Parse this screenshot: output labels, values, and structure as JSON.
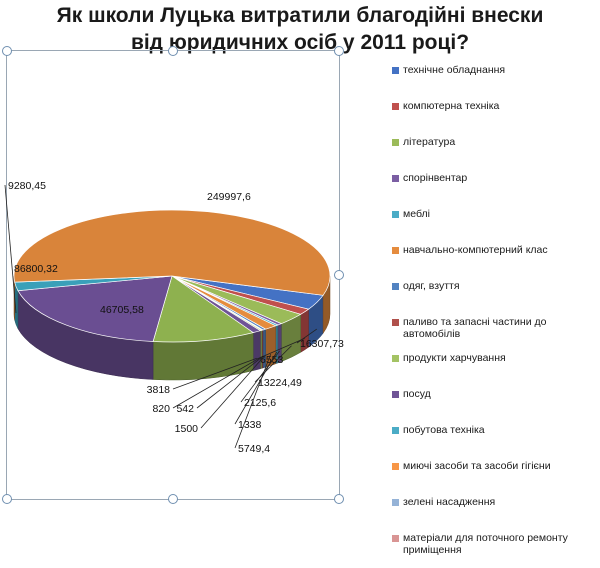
{
  "chart_data": {
    "type": "pie",
    "title_lines": [
      "Як школи Луцька витратили благодійні внески",
      "від юридичних осіб у 2011 році?"
    ],
    "series": [
      {
        "name": "технічне обладнання",
        "value": 16307.73,
        "color": "#4472C4",
        "label": "16307,73"
      },
      {
        "name": "компютерна техніка",
        "value": 6553,
        "color": "#C0504D",
        "label": "6553"
      },
      {
        "name": "література",
        "value": 13224.49,
        "color": "#9BBB59",
        "label": "13224,49"
      },
      {
        "name": "спорінвентар",
        "value": 2125.6,
        "color": "#7B5EA3",
        "label": "2125,6"
      },
      {
        "name": "меблі",
        "value": 1338,
        "color": "#4BACC6",
        "label": "1338"
      },
      {
        "name": "навчально-компютерний клас",
        "value": 5749.4,
        "color": "#E58C3E",
        "label": "5749,4"
      },
      {
        "name": "одяг, взуття",
        "value": 1500,
        "color": "#5283C1",
        "label": "1500"
      },
      {
        "name": "паливо та запасні частини до автомобілів",
        "value": 542,
        "color": "#B0504B",
        "label": "542"
      },
      {
        "name": "продукти харчування",
        "value": 820,
        "color": "#A4C364",
        "label": "820"
      },
      {
        "name": "посуд",
        "value": 3818,
        "color": "#6F5496",
        "label": "3818"
      },
      {
        "name": "побутова техніка",
        "value": 46705.58,
        "color": "#8EB14F",
        "label": "46705,58"
      },
      {
        "name": "миючі засоби та засоби гігієни",
        "value": 86800.32,
        "color": "#6A4E92",
        "label": "86800,32"
      },
      {
        "name": "зелені насадження",
        "value": 9280.45,
        "color": "#3AA0B9",
        "label": "9280,45"
      },
      {
        "name": "матеріали для поточного ремонту приміщення",
        "value": 249997.6,
        "color": "#D9843A",
        "label": "249997,6"
      }
    ],
    "legend": [
      {
        "label": "технічне обладнання",
        "color": "#4472C4"
      },
      {
        "label": "компютерна техніка",
        "color": "#C0504D"
      },
      {
        "label": "література",
        "color": "#9BBB59"
      },
      {
        "label": "спорінвентар",
        "color": "#7B5EA3"
      },
      {
        "label": "меблі",
        "color": "#4BACC6"
      },
      {
        "label": "навчально-компютерний клас",
        "color": "#E58C3E"
      },
      {
        "label": "одяг, взуття",
        "color": "#5283C1"
      },
      {
        "label": "паливо та запасні частини до автомобілів",
        "color": "#B0504B"
      },
      {
        "label": "продукти харчування",
        "color": "#A4C364"
      },
      {
        "label": "посуд",
        "color": "#6F5496"
      },
      {
        "label": "побутова техніка",
        "color": "#4BACC6"
      },
      {
        "label": "миючі засоби та засоби гігієни",
        "color": "#F79646"
      },
      {
        "label": "зелені насадження",
        "color": "#95B3D7"
      },
      {
        "label": "матеріали для поточного ремонту приміщення",
        "color": "#D99594"
      }
    ],
    "legend_position": "right",
    "style": "3d-pie"
  }
}
